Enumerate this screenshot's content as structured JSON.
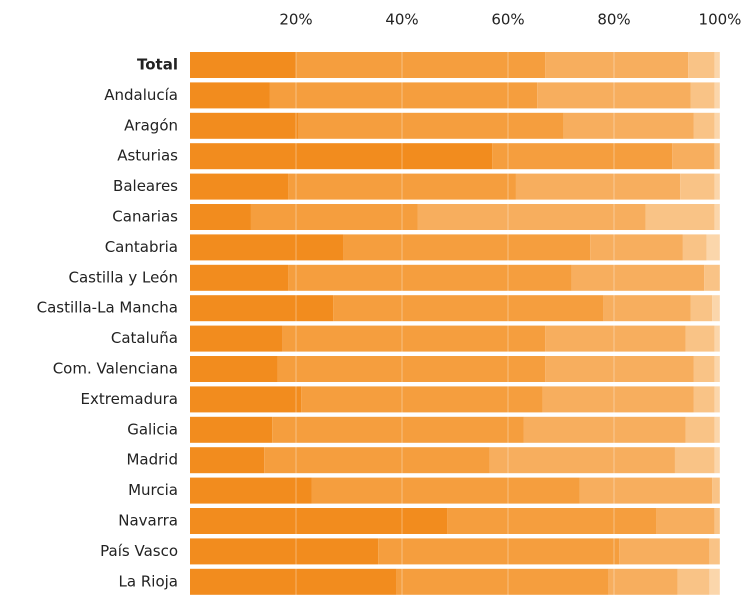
{
  "chart_data": {
    "type": "stacked-bar-horizontal",
    "categories": [
      "Total",
      "Andalucía",
      "Aragón",
      "Asturias",
      "Baleares",
      "Canarias",
      "Cantabria",
      "Castilla y León",
      "Castilla-La Mancha",
      "Cataluña",
      "Com. Valenciana",
      "Extremadura",
      "Galicia",
      "Madrid",
      "Murcia",
      "Navarra",
      "País Vasco",
      "La Rioja"
    ],
    "series": [
      {
        "color": "#f28c1e",
        "values": [
          20,
          15,
          20.5,
          57,
          18.5,
          11.5,
          29,
          18.5,
          27,
          17.5,
          16.5,
          21,
          15.5,
          14,
          23,
          48.5,
          35.5,
          39
        ]
      },
      {
        "color": "#f59e3e",
        "values": [
          47,
          50.5,
          50,
          34,
          43,
          31.5,
          46.5,
          53.5,
          51,
          49.5,
          50.5,
          45.5,
          47.5,
          42.5,
          50.5,
          39.5,
          45.5,
          40
        ]
      },
      {
        "color": "#f7ae5e",
        "values": [
          27,
          29,
          24.5,
          8,
          31,
          43,
          17.5,
          25,
          16.5,
          26.5,
          28,
          28.5,
          30.5,
          35,
          25,
          11,
          17,
          13
        ]
      },
      {
        "color": "#f9c386",
        "values": [
          5,
          4.5,
          4,
          1,
          6.5,
          13,
          4.5,
          3,
          4,
          5.5,
          4,
          4,
          5.5,
          7.5,
          1.5,
          1,
          2,
          6
        ]
      },
      {
        "color": "#fbd6ab",
        "values": [
          1,
          1,
          1,
          0,
          1,
          1,
          2.5,
          0,
          1.5,
          1,
          1,
          1,
          1,
          1,
          0,
          0,
          0,
          2
        ]
      }
    ],
    "xlim": [
      0,
      100
    ],
    "xticks": [
      {
        "value": 20,
        "label": "20%"
      },
      {
        "value": 40,
        "label": "40%"
      },
      {
        "value": 60,
        "label": "60%"
      },
      {
        "value": 80,
        "label": "80%"
      },
      {
        "value": 100,
        "label": "100%"
      }
    ]
  }
}
